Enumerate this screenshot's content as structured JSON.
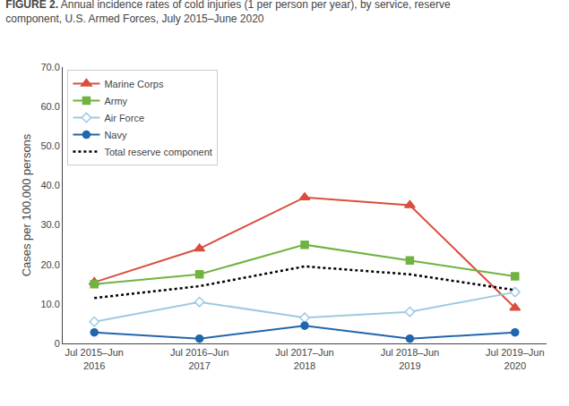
{
  "chart_data": {
    "type": "line",
    "title": "FIGURE 2. Annual incidence rates of cold injuries (1 per person per year), by service, reserve\ncomponent, U.S. Armed Forces, July 2015–June 2020",
    "categories": [
      "Jul 2015–Jun\n2016",
      "Jul 2016–Jun\n2017",
      "Jul 2017–Jun\n2018",
      "Jul 2018–Jun\n2019",
      "Jul 2019–Jun\n2020"
    ],
    "series": [
      {
        "name": "Marine Corps",
        "color": "#d94f3d",
        "marker": "triangle",
        "line_style": "solid",
        "values": [
          15.5,
          24.0,
          37.0,
          35.0,
          9.0
        ]
      },
      {
        "name": "Army",
        "color": "#70b341",
        "marker": "square",
        "line_style": "solid",
        "values": [
          15.0,
          17.5,
          25.0,
          21.0,
          17.0
        ]
      },
      {
        "name": "Air Force",
        "color": "#9ecae1",
        "marker": "open diamond",
        "line_style": "solid",
        "values": [
          5.5,
          10.5,
          6.5,
          8.0,
          13.0
        ]
      },
      {
        "name": "Navy",
        "color": "#2166ac",
        "marker": "circle",
        "line_style": "solid",
        "values": [
          2.8,
          1.2,
          4.5,
          1.2,
          2.8
        ]
      },
      {
        "name": "Total reserve component",
        "color": "#000000",
        "marker": "none",
        "line_style": "dotted",
        "values": [
          11.5,
          14.5,
          19.5,
          17.5,
          13.5
        ]
      }
    ],
    "y_label": "Cases per 100,000 persons",
    "ylim": [
      0,
      70
    ],
    "yticks": [
      0,
      {
        "value": 10,
        "label": "10.0"
      },
      {
        "value": 20,
        "label": "20.0"
      },
      {
        "value": 30,
        "label": "30.0"
      },
      {
        "value": 40,
        "label": "40.0"
      },
      {
        "value": 50,
        "label": "50.0"
      },
      {
        "value": 60,
        "label": "60.0"
      },
      {
        "value": 70,
        "label": "70.0"
      }
    ],
    "grid": false,
    "legend": "upper left"
  }
}
